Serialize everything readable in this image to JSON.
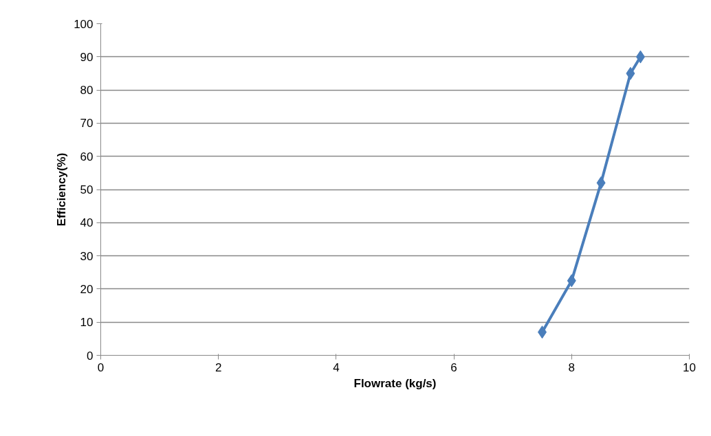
{
  "chart_data": {
    "type": "line",
    "xlabel": "Flowrate (kg/s)",
    "ylabel": "Efficiency(%)",
    "x": [
      7.5,
      8.0,
      8.5,
      9.0,
      9.17
    ],
    "series": [
      {
        "color": "#4a7ebb",
        "values": [
          7,
          22.5,
          52,
          85,
          90
        ]
      }
    ],
    "xlim": [
      0,
      10
    ],
    "xticks": [
      0,
      2,
      4,
      6,
      8,
      10
    ],
    "ylim": [
      0,
      100
    ],
    "yticks": [
      0,
      10,
      20,
      30,
      40,
      50,
      60,
      70,
      80,
      90,
      100
    ],
    "grid": "y",
    "marker": "diamond",
    "line_style": "solid"
  }
}
